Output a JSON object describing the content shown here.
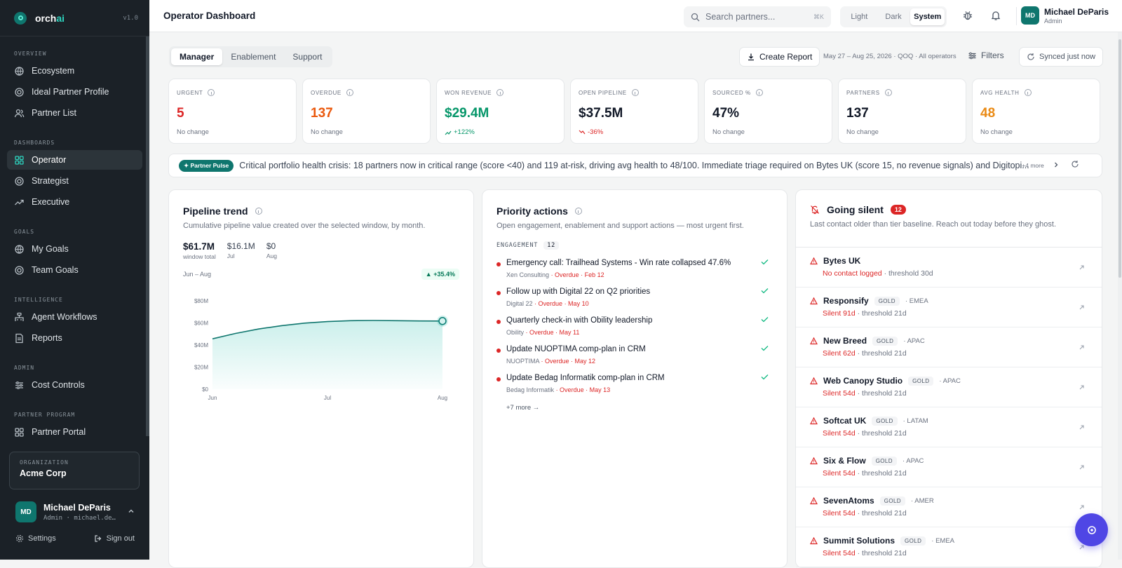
{
  "brand": {
    "prefix": "orch",
    "suffix": "ai",
    "version": "v1.0"
  },
  "sidebar": {
    "sections": [
      {
        "heading": "OVERVIEW",
        "items": [
          {
            "label": "Ecosystem",
            "icon": "globe-icon"
          },
          {
            "label": "Ideal Partner Profile",
            "icon": "target-icon"
          },
          {
            "label": "Partner List",
            "icon": "users-icon"
          }
        ]
      },
      {
        "heading": "DASHBOARDS",
        "items": [
          {
            "label": "Operator",
            "icon": "grid-icon",
            "active": true
          },
          {
            "label": "Strategist",
            "icon": "target-icon"
          },
          {
            "label": "Executive",
            "icon": "trend-icon"
          }
        ]
      },
      {
        "heading": "GOALS",
        "items": [
          {
            "label": "My Goals",
            "icon": "globe-icon"
          },
          {
            "label": "Team Goals",
            "icon": "target-icon"
          }
        ]
      },
      {
        "heading": "INTELLIGENCE",
        "items": [
          {
            "label": "Agent Workflows",
            "icon": "workflow-icon"
          },
          {
            "label": "Reports",
            "icon": "document-icon"
          }
        ]
      },
      {
        "heading": "ADMIN",
        "items": [
          {
            "label": "Cost Controls",
            "icon": "sliders-icon"
          }
        ]
      },
      {
        "heading": "PARTNER PROGRAM",
        "items": [
          {
            "label": "Partner Portal",
            "icon": "grid-icon"
          }
        ]
      }
    ],
    "org_label": "ORGANIZATION",
    "org_name": "Acme Corp",
    "user": {
      "initials": "MD",
      "name": "Michael DeParis",
      "role": "Admin · michael.de…"
    },
    "settings_label": "Settings",
    "signout_label": "Sign out"
  },
  "topbar": {
    "title": "Operator Dashboard",
    "search_placeholder": "Search partners...",
    "search_shortcut": "⌘K",
    "theme_options": [
      "Light",
      "Dark",
      "System"
    ],
    "theme_selected": "System",
    "user": {
      "initials": "MD",
      "name": "Michael DeParis",
      "role": "Admin"
    }
  },
  "toolbar": {
    "tabs": [
      "Manager",
      "Enablement",
      "Support"
    ],
    "active_tab": "Manager",
    "create_report": "Create Report",
    "range": "May 27 – Aug 25, 2026 · QOQ · All operators",
    "filters": "Filters",
    "synced": "Synced just now"
  },
  "kpis": [
    {
      "label": "URGENT",
      "value": "5",
      "sub": "No change",
      "color": "#dc2626"
    },
    {
      "label": "OVERDUE",
      "value": "137",
      "sub": "No change",
      "color": "#ea580c"
    },
    {
      "label": "WON REVENUE",
      "value": "$29.4M",
      "sub": "+122%",
      "color": "#059669",
      "sub_color": "#059669"
    },
    {
      "label": "OPEN PIPELINE",
      "value": "$37.5M",
      "sub": "-36%",
      "color": "#111827",
      "sub_color": "#dc2626"
    },
    {
      "label": "SOURCED %",
      "value": "47%",
      "sub": "No change",
      "color": "#111827"
    },
    {
      "label": "PARTNERS",
      "value": "137",
      "sub": "No change",
      "color": "#111827"
    },
    {
      "label": "AVG HEALTH",
      "value": "48",
      "sub": "No change",
      "color": "#ea8a14"
    }
  ],
  "pulse": {
    "badge": "Partner Pulse",
    "text": "Critical portfolio health crisis: 18 partners now in critical range (score <40) and 119 at-risk, driving avg health to 48/100. Immediate triage required on Bytes UK (score 15, no revenue signals) and Digitopi...",
    "more": "+4 more"
  },
  "pipeline": {
    "title": "Pipeline trend",
    "subtitle": "Cumulative pipeline value created over the selected window, by month.",
    "stats": [
      {
        "value": "$61.7M",
        "label": "window total"
      },
      {
        "value": "$16.1M",
        "label": "Jul"
      },
      {
        "value": "$0",
        "label": "Aug"
      }
    ],
    "range_label": "Jun – Aug",
    "delta": "+35.4%"
  },
  "chart_data": {
    "type": "area",
    "categories": [
      "Jun",
      "Jul",
      "Aug"
    ],
    "x": [
      0,
      1,
      2,
      3,
      4,
      5,
      6,
      7,
      8,
      9,
      10
    ],
    "values": [
      45.6,
      50.5,
      54.5,
      57.5,
      59.8,
      61.2,
      62.0,
      62.2,
      62.0,
      61.8,
      61.7
    ],
    "yticks": [
      "$0",
      "$20M",
      "$40M",
      "$60M",
      "$80M"
    ],
    "ylim": [
      0,
      80
    ],
    "ylabel": "",
    "xlabel": "",
    "title": "",
    "color": "#14b8a6",
    "grid": false
  },
  "priority": {
    "title": "Priority actions",
    "subtitle": "Open engagement, enablement and support actions — most urgent first.",
    "section": "ENGAGEMENT",
    "count": "12",
    "items": [
      {
        "title": "Emergency call: Trailhead Systems - Win rate collapsed 47.6%",
        "partner": "Xen Consulting",
        "status": "· Overdue · Feb 12"
      },
      {
        "title": "Follow up with Digital 22 on Q2 priorities",
        "partner": "Digital 22",
        "status": "· Overdue · May 10"
      },
      {
        "title": "Quarterly check-in with Obility leadership",
        "partner": "Obility",
        "status": "· Overdue · May 11"
      },
      {
        "title": "Update NUOPTIMA comp-plan in CRM",
        "partner": "NUOPTIMA",
        "status": "· Overdue · May 12"
      },
      {
        "title": "Update Bedag Informatik comp-plan in CRM",
        "partner": "Bedag Informatik",
        "status": "· Overdue · May 13"
      }
    ],
    "more": "+7 more →"
  },
  "silent": {
    "title": "Going silent",
    "count": "12",
    "subtitle": "Last contact older than tier baseline. Reach out today before they ghost.",
    "items": [
      {
        "name": "Bytes UK",
        "tier": "",
        "region": "",
        "status": "No contact logged",
        "threshold": "· threshold 30d"
      },
      {
        "name": "Responsify",
        "tier": "GOLD",
        "region": "· EMEA",
        "status": "Silent 91d",
        "threshold": "· threshold 21d"
      },
      {
        "name": "New Breed",
        "tier": "GOLD",
        "region": "· APAC",
        "status": "Silent 62d",
        "threshold": "· threshold 21d"
      },
      {
        "name": "Web Canopy Studio",
        "tier": "GOLD",
        "region": "· APAC",
        "status": "Silent 54d",
        "threshold": "· threshold 21d"
      },
      {
        "name": "Softcat UK",
        "tier": "GOLD",
        "region": "· LATAM",
        "status": "Silent 54d",
        "threshold": "· threshold 21d"
      },
      {
        "name": "Six & Flow",
        "tier": "GOLD",
        "region": "· APAC",
        "status": "Silent 54d",
        "threshold": "· threshold 21d"
      },
      {
        "name": "SevenAtoms",
        "tier": "GOLD",
        "region": "· AMER",
        "status": "Silent 54d",
        "threshold": "· threshold 21d"
      },
      {
        "name": "Summit Solutions",
        "tier": "GOLD",
        "region": "· EMEA",
        "status": "Silent 54d",
        "threshold": "· threshold 21d"
      }
    ]
  }
}
